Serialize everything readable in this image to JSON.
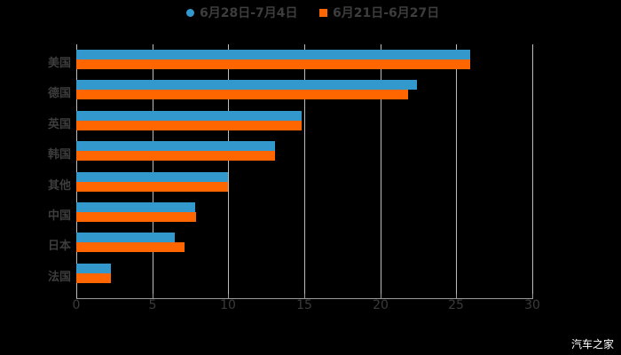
{
  "legend": [
    {
      "label": "6月28日-7月4日",
      "color": "#3399cc",
      "marker": "circle"
    },
    {
      "label": "6月21日-6月27日",
      "color": "#ff6600",
      "marker": "square"
    }
  ],
  "watermark": "汽车之家",
  "chart_data": {
    "type": "bar",
    "orientation": "horizontal",
    "title": "",
    "xlabel": "",
    "ylabel": "",
    "categories": [
      "美国",
      "德国",
      "英国",
      "韩国",
      "其他",
      "中国",
      "日本",
      "法国"
    ],
    "series": [
      {
        "name": "6月28日-7月4日",
        "color": "#3399cc",
        "values": [
          25.9,
          22.4,
          14.8,
          13.1,
          10.0,
          7.8,
          6.5,
          2.3
        ]
      },
      {
        "name": "6月21日-6月27日",
        "color": "#ff6600",
        "values": [
          25.9,
          21.8,
          14.8,
          13.1,
          10.0,
          7.9,
          7.1,
          2.3
        ]
      }
    ],
    "xlim": [
      0,
      30
    ],
    "x_ticks": [
      "0",
      "5",
      "10",
      "15",
      "20",
      "25",
      "30"
    ],
    "grid": true,
    "legend_position": "top"
  }
}
